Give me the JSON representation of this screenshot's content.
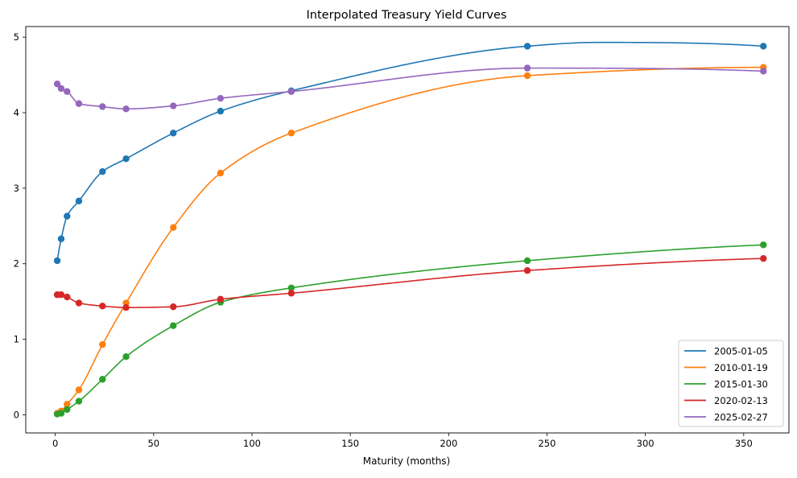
{
  "chart_data": {
    "type": "line",
    "title": "Interpolated Treasury Yield Curves",
    "xlabel": "Maturity (months)",
    "ylabel": "",
    "xlim": [
      -15,
      373
    ],
    "ylim": [
      -0.24,
      5.14
    ],
    "xticks": [
      0,
      50,
      100,
      150,
      200,
      250,
      300,
      350
    ],
    "yticks": [
      0,
      1,
      2,
      3,
      4,
      5
    ],
    "grid": false,
    "legend_position": "lower-right",
    "x": [
      1,
      3,
      6,
      12,
      24,
      36,
      60,
      84,
      120,
      240,
      360
    ],
    "series": [
      {
        "name": "2005-01-05",
        "color": "#1f77b4",
        "values": [
          2.04,
          2.33,
          2.63,
          2.83,
          3.22,
          3.39,
          3.73,
          4.02,
          4.29,
          4.88,
          4.88
        ],
        "curve_peak": {
          "x": 275,
          "y": 4.93
        }
      },
      {
        "name": "2010-01-19",
        "color": "#ff7f0e",
        "values": [
          0.02,
          0.05,
          0.14,
          0.33,
          0.93,
          1.48,
          2.48,
          3.2,
          3.73,
          4.49,
          4.6
        ]
      },
      {
        "name": "2015-01-30",
        "color": "#2ca02c",
        "values": [
          0.01,
          0.02,
          0.07,
          0.18,
          0.47,
          0.77,
          1.18,
          1.49,
          1.68,
          2.04,
          2.25
        ]
      },
      {
        "name": "2020-02-13",
        "color": "#d62728",
        "values": [
          1.59,
          1.59,
          1.56,
          1.48,
          1.44,
          1.42,
          1.43,
          1.53,
          1.61,
          1.91,
          2.07
        ]
      },
      {
        "name": "2025-02-27",
        "color": "#9467bd",
        "values": [
          4.38,
          4.32,
          4.28,
          4.12,
          4.08,
          4.05,
          4.09,
          4.19,
          4.28,
          4.59,
          4.55
        ]
      }
    ]
  }
}
